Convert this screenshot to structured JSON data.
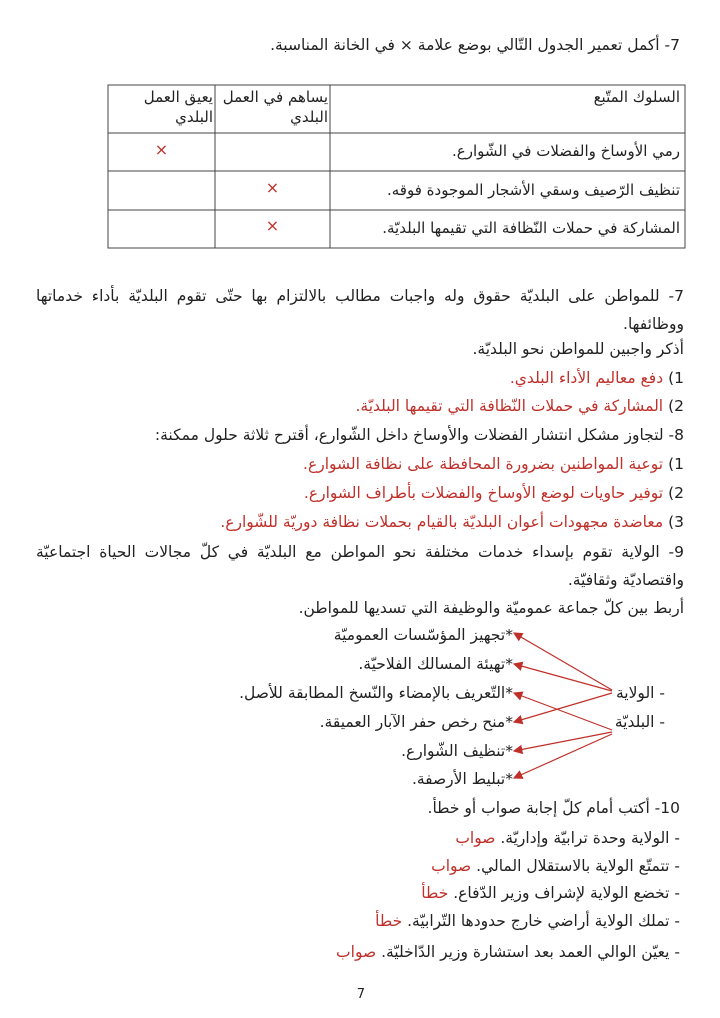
{
  "q7a": {
    "title": "7- أكمل تعمير الجدول التّالي بوضع علامة × في الخانة المناسبة.",
    "table": {
      "headers": [
        "السلوك المتّبع",
        "يساهم في العمل البلدي",
        "يعيق العمل البلدي"
      ],
      "rows": [
        {
          "behavior": "رمي الأوساخ والفضلات في الشّوارع.",
          "hinders": "×"
        },
        {
          "behavior": "تنظيف الرّصيف وسقي الأشجار الموجودة فوقه.",
          "contributes": "×"
        },
        {
          "behavior": "المشاركة في حملات النّظافة التي تقيمها البلديّة.",
          "contributes": "×"
        }
      ]
    }
  },
  "q7b": {
    "intro": "7- للمواطن على البلديّة حقوق وله واجبات مطالب بالالتزام بها حتّى تقوم البلديّة بأداء خدماتها ووظائفها.",
    "prompt": "أذكر واجبين للمواطن نحو البلديّة.",
    "answers": [
      {
        "num": "1)",
        "text": "دفع معاليم الأداء البلدي."
      },
      {
        "num": "2)",
        "text": "المشاركة في حملات النّظافة التي تقيمها البلديّة."
      }
    ]
  },
  "q8": {
    "prompt": "8- لتجاوز مشكل انتشار الفضلات والأوساخ داخل الشّوارع، أقترح ثلاثة حلول ممكنة:",
    "answers": [
      {
        "num": "1)",
        "text": "توعية المواطنين بضرورة المحافظة على نظافة الشوارع."
      },
      {
        "num": "2)",
        "text": "توفير حاويات لوضع الأوساخ والفضلات بأطراف الشوارع."
      },
      {
        "num": "3)",
        "text": "معاضدة مجهودات أعوان البلديّة بالقيام بحملات نظافة دوريّة للشّوارع."
      }
    ]
  },
  "q9": {
    "intro": "9- الولاية تقوم بإسداء خدمات مختلفة نحو المواطن مع البلديّة في كلّ مجالات الحياة اجتماعيّة واقتصاديّة وثقافيّة.",
    "prompt": "أربط بين كلّ جماعة عموميّة والوظيفة التي تسديها للمواطن.",
    "entities": [
      "- الولاية",
      "- البلديّة"
    ],
    "functions": [
      "*تجهيز المؤسّسات العموميّة",
      "*تهيئة المسالك الفلاحيّة.",
      "*التّعريف بالإمضاء والنّسخ المطابقة للأصل.",
      "*منح رخص حفر الآبار العميقة.",
      "*تنظيف الشّوارع.",
      "*تبليط الأرصفة."
    ]
  },
  "q10": {
    "prompt": "10- أكتب أمام كلّ إجابة صواب أو خطأ.",
    "items": [
      {
        "statement": "- الولاية وحدة ترابيّة وإداريّة.",
        "answer": "صواب"
      },
      {
        "statement": "- تتمتّع الولاية بالاستقلال المالي.",
        "answer": "صواب"
      },
      {
        "statement": "- تخضع الولاية لإشراف وزير الدّفاع.",
        "answer": "خطأ"
      },
      {
        "statement": "- تملك الولاية أراضي خارج حدودها التّرابيّة.",
        "answer": "خطأ"
      },
      {
        "statement": "- يعيّن الوالي العمد بعد استشارة وزير الدّاخليّة.",
        "answer": "صواب"
      }
    ]
  },
  "page_number": "7"
}
